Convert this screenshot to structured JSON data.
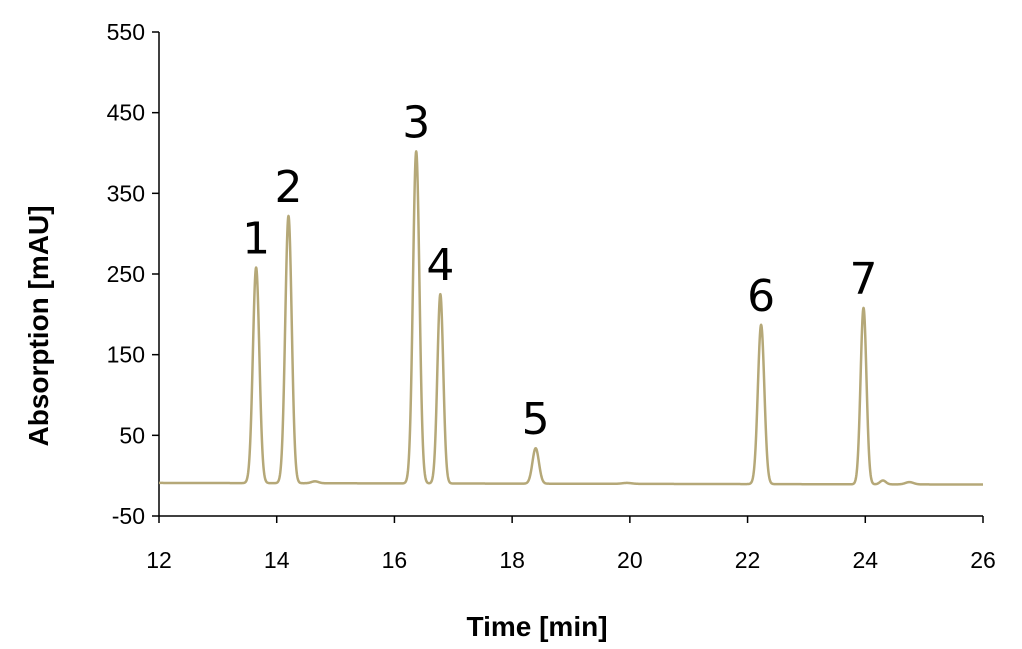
{
  "chart_data": {
    "type": "line",
    "xlabel": "Time [min]",
    "ylabel": "Absorption [mAU]",
    "xlim": [
      12,
      26
    ],
    "ylim": [
      -50,
      550
    ],
    "xticks": [
      12,
      14,
      16,
      18,
      20,
      22,
      24,
      26
    ],
    "yticks": [
      -50,
      50,
      150,
      250,
      350,
      450,
      550
    ],
    "grid": false,
    "legend": "none",
    "line_color": "#b5a878",
    "baseline": {
      "start": -9,
      "end": -11
    },
    "peaks": [
      {
        "label": "1",
        "time": 13.65,
        "height": 258,
        "width": 0.055
      },
      {
        "label": "2",
        "time": 14.2,
        "height": 322,
        "width": 0.055
      },
      {
        "label": "3",
        "time": 16.37,
        "height": 402,
        "width": 0.055
      },
      {
        "label": "4",
        "time": 16.78,
        "height": 225,
        "width": 0.05
      },
      {
        "label": "5",
        "time": 18.4,
        "height": 34,
        "width": 0.055
      },
      {
        "label": "6",
        "time": 22.23,
        "height": 187,
        "width": 0.055
      },
      {
        "label": "7",
        "time": 23.97,
        "height": 208,
        "width": 0.05
      }
    ],
    "minor_bumps": [
      {
        "time": 14.65,
        "height": -7,
        "width": 0.06
      },
      {
        "time": 19.95,
        "height": -9,
        "width": 0.08
      },
      {
        "time": 24.3,
        "height": -6,
        "width": 0.05
      },
      {
        "time": 24.75,
        "height": -8,
        "width": 0.07
      }
    ]
  }
}
